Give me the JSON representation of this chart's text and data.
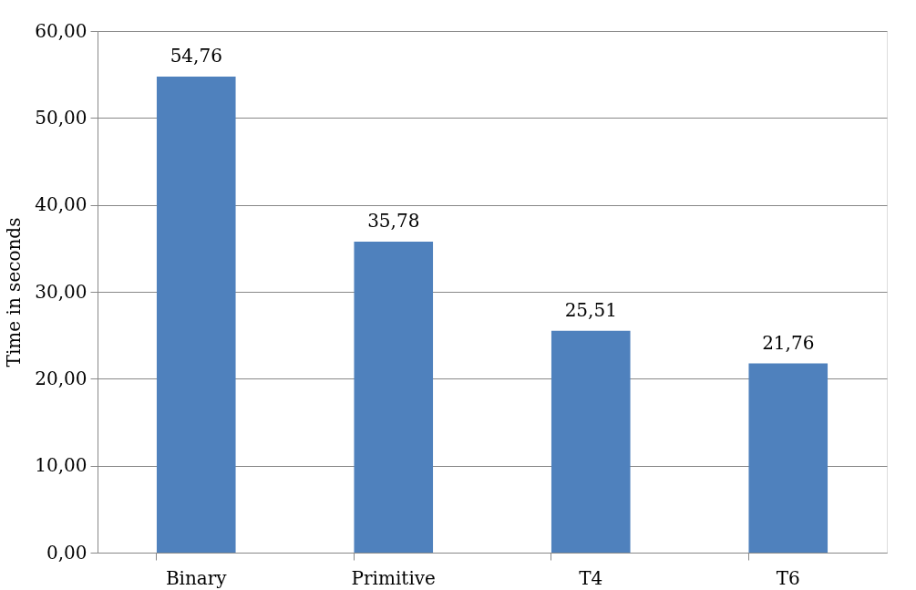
{
  "chart_data": {
    "type": "bar",
    "ylabel": "Time in seconds",
    "categories": [
      "Binary",
      "Primitive",
      "T4",
      "T6"
    ],
    "values": [
      54.76,
      35.78,
      25.51,
      21.76
    ],
    "value_labels": [
      "54,76",
      "35,78",
      "25,51",
      "21,76"
    ],
    "color": "#4f81bd",
    "ylim": [
      0,
      60
    ],
    "yticks": [
      {
        "value": 0,
        "label": "0,00"
      },
      {
        "value": 10,
        "label": "10,00"
      },
      {
        "value": 20,
        "label": "20,00"
      },
      {
        "value": 30,
        "label": "30,00"
      },
      {
        "value": 40,
        "label": "40,00"
      },
      {
        "value": 50,
        "label": "50,00"
      },
      {
        "value": 60,
        "label": "60,00"
      }
    ],
    "grid": "y"
  }
}
